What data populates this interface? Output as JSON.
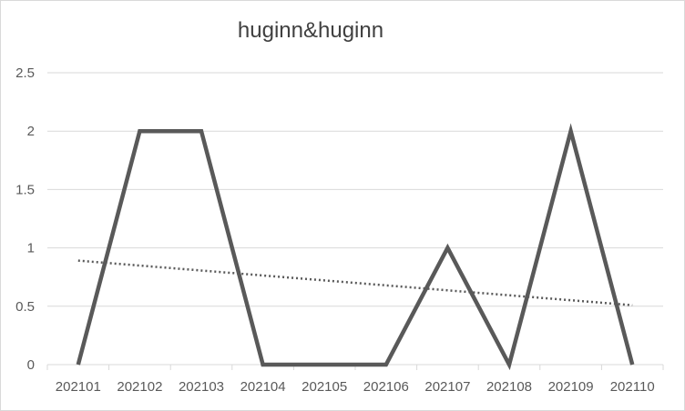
{
  "chart_data": {
    "type": "line",
    "title": "huginn&huginn",
    "categories": [
      "202101",
      "202102",
      "202103",
      "202104",
      "202105",
      "202106",
      "202107",
      "202108",
      "202109",
      "202110"
    ],
    "series": [
      {
        "values": [
          0,
          2,
          2,
          0,
          0,
          0,
          1,
          0,
          2,
          0
        ],
        "color": "#595959"
      }
    ],
    "trendline": {
      "type": "linear",
      "style": "dotted",
      "color": "#595959"
    },
    "ylim": [
      0,
      2.5
    ],
    "yticks": [
      "0",
      "0.5",
      "1",
      "1.5",
      "2",
      "2.5"
    ],
    "grid": true,
    "legend": "none"
  }
}
